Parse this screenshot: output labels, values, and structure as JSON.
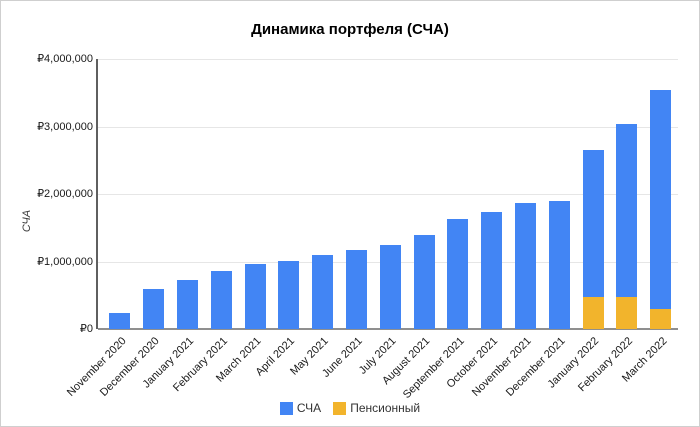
{
  "chart": {
    "title": "Динамика портфеля (СЧА)",
    "y_axis": {
      "title": "СЧА",
      "ticks": [
        "₽4,000,000",
        "₽3,000,000",
        "₽2,000,000",
        "₽1,000,000",
        "₽0"
      ]
    },
    "legend": {
      "items": [
        {
          "label": "СЧА",
          "color": "#4285F4"
        },
        {
          "label": "Пенсионный",
          "color": "#F2B42C"
        }
      ]
    }
  },
  "chart_data": {
    "type": "bar",
    "stacked": true,
    "title": "Динамика портфеля (СЧА)",
    "xlabel": "",
    "ylabel": "СЧА",
    "ylim": [
      0,
      4000000
    ],
    "y_tick_values": [
      4000000,
      3000000,
      2000000,
      1000000,
      0
    ],
    "y_tick_format": "₽ with thousands separators",
    "grid": true,
    "legend_position": "bottom",
    "categories": [
      "November 2020",
      "December 2020",
      "January 2021",
      "February 2021",
      "March 2021",
      "April 2021",
      "May 2021",
      "June 2021",
      "July 2021",
      "August 2021",
      "September 2021",
      "October 2021",
      "November 2021",
      "December 2021",
      "January 2022",
      "February 2022",
      "March 2022"
    ],
    "series": [
      {
        "name": "Пенсионный",
        "color": "#F2B42C",
        "stack_position": "bottom",
        "values": [
          0,
          0,
          0,
          0,
          0,
          0,
          0,
          0,
          0,
          0,
          0,
          0,
          0,
          0,
          470000,
          470000,
          290000
        ]
      },
      {
        "name": "СЧА",
        "color": "#4285F4",
        "stack_position": "top",
        "values": [
          240000,
          600000,
          720000,
          860000,
          960000,
          1010000,
          1090000,
          1170000,
          1250000,
          1400000,
          1630000,
          1730000,
          1870000,
          1900000,
          2180000,
          2570000,
          3250000
        ]
      }
    ],
    "bar_totals": [
      240000,
      600000,
      720000,
      860000,
      960000,
      1010000,
      1090000,
      1170000,
      1250000,
      1400000,
      1630000,
      1730000,
      1870000,
      1900000,
      2650000,
      3040000,
      3540000
    ]
  }
}
